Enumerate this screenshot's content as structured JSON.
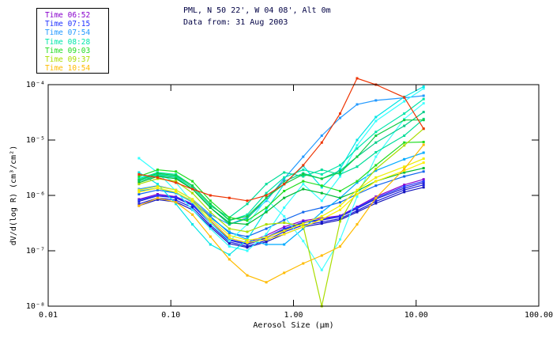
{
  "header": {
    "title": "PML, N 50 22', W 04 08', Alt 0m",
    "subtitle": "Data from: 31 Aug 2003",
    "text_color": "#000044"
  },
  "legend": {
    "entries": [
      {
        "label": "Time 06:52",
        "color": "#8800cc"
      },
      {
        "label": "Time 07:15",
        "color": "#2233ff"
      },
      {
        "label": "Time 07:54",
        "color": "#2299ff"
      },
      {
        "label": "Time 08:28",
        "color": "#00e6aa"
      },
      {
        "label": "Time 09:03",
        "color": "#22dd22"
      },
      {
        "label": "Time 09:37",
        "color": "#aadd00"
      },
      {
        "label": "Time 10:54",
        "color": "#ffbb00"
      }
    ]
  },
  "chart_data": {
    "type": "line",
    "title": "PML, N 50 22', W 04 08', Alt 0m",
    "subtitle": "Data from: 31 Aug 2003",
    "xlabel": "Aerosol Size (μm)",
    "ylabel": "dV/d(log R) (cm³/cm²)",
    "x_scale": "log",
    "y_scale": "log",
    "xlim": [
      0.01,
      100
    ],
    "ylim": [
      1e-08,
      0.0001
    ],
    "x_ticks": [
      0.01,
      0.1,
      1,
      10,
      100
    ],
    "x_tick_labels": [
      "0.01",
      "0.10",
      "1.00",
      "10.00",
      "100.00"
    ],
    "y_ticks": [
      1e-08,
      1e-07,
      1e-06,
      1e-05,
      0.0001
    ],
    "y_tick_labels": [
      "10⁻⁸",
      "10⁻⁷",
      "10⁻⁶",
      "10⁻⁵",
      "10⁻⁴"
    ],
    "grid": false,
    "legend_position": "top-left",
    "marker": "square",
    "x": [
      0.055,
      0.078,
      0.11,
      0.15,
      0.21,
      0.3,
      0.42,
      0.6,
      0.84,
      1.2,
      1.7,
      2.4,
      3.3,
      4.7,
      8.0,
      11.5
    ],
    "series": [
      {
        "label": "Time 06:52",
        "color": "#8800cc",
        "values": [
          8.5e-07,
          1.05e-06,
          9.5e-07,
          7e-07,
          3.5e-07,
          1.7e-07,
          1.4e-07,
          1.9e-07,
          2.7e-07,
          3.5e-07,
          3.9e-07,
          4.3e-07,
          6.2e-07,
          9.5e-07,
          1.55e-06,
          1.95e-06
        ]
      },
      {
        "label": "",
        "color": "#1a1add",
        "values": [
          7e-07,
          9e-07,
          8.2e-07,
          6e-07,
          2.9e-07,
          1.45e-07,
          1.2e-07,
          1.55e-07,
          2.2e-07,
          2.9e-07,
          3.3e-07,
          3.8e-07,
          5.3e-07,
          7.8e-07,
          1.25e-06,
          1.55e-06
        ]
      },
      {
        "label": "",
        "color": "#2222cc",
        "values": [
          7.8e-07,
          9.8e-07,
          9e-07,
          6.6e-07,
          3.2e-07,
          1.55e-07,
          1.3e-07,
          1.7e-07,
          2.4e-07,
          3.2e-07,
          3.6e-07,
          4.1e-07,
          5.8e-07,
          8.6e-07,
          1.35e-06,
          1.7e-06
        ]
      },
      {
        "label": "Time 07:15",
        "color": "#2233ff",
        "values": [
          8.2e-07,
          1e-06,
          9.2e-07,
          6.8e-07,
          3.3e-07,
          1.6e-07,
          1.35e-07,
          1.75e-07,
          2.5e-07,
          3.3e-07,
          3.7e-07,
          4.2e-07,
          6e-07,
          9e-07,
          1.45e-06,
          1.8e-06
        ]
      },
      {
        "label": "",
        "color": "#1515bb",
        "values": [
          6.5e-07,
          8.4e-07,
          7.6e-07,
          5.5e-07,
          2.7e-07,
          1.35e-07,
          1.15e-07,
          1.45e-07,
          2e-07,
          2.7e-07,
          3.1e-07,
          3.6e-07,
          5e-07,
          7.2e-07,
          1.15e-06,
          1.4e-06
        ]
      },
      {
        "label": "",
        "color": "#1166ee",
        "values": [
          1.05e-06,
          1.25e-06,
          1.1e-06,
          8e-07,
          4.2e-07,
          2.1e-07,
          1.8e-07,
          2.5e-07,
          3.6e-07,
          5e-07,
          6e-07,
          7.5e-07,
          1.05e-06,
          1.5e-06,
          2.2e-06,
          2.7e-06
        ]
      },
      {
        "label": "Time 07:54",
        "color": "#2299ff",
        "values": [
          1.3e-06,
          1.5e-06,
          1.25e-06,
          8.5e-07,
          4.5e-07,
          3e-07,
          4e-07,
          8e-07,
          2e-06,
          5e-06,
          1.2e-05,
          2.5e-05,
          4.4e-05,
          5.2e-05,
          5.8e-05,
          6.3e-05
        ]
      },
      {
        "label": "",
        "color": "#00aaff",
        "values": [
          1.2e-06,
          1.35e-06,
          1.1e-06,
          7.5e-07,
          4e-07,
          2.2e-07,
          1.6e-07,
          1.3e-07,
          1.3e-07,
          2.5e-07,
          5e-07,
          9e-07,
          1.7e-06,
          2.8e-06,
          4.5e-06,
          5.9e-06
        ]
      },
      {
        "label": "",
        "color": "#33ffff",
        "values": [
          4.7e-06,
          2.6e-06,
          1.2e-06,
          5.5e-07,
          2.5e-07,
          1.2e-07,
          1e-07,
          2e-07,
          6e-07,
          1.6e-06,
          8e-07,
          2.2e-06,
          8e-06,
          2.2e-05,
          5e-05,
          8.5e-05
        ]
      },
      {
        "label": "",
        "color": "#00e6e6",
        "values": [
          2.6e-06,
          1.6e-06,
          7e-07,
          3e-07,
          1.3e-07,
          8.5e-08,
          1.6e-07,
          5.5e-07,
          1.6e-06,
          3.4e-06,
          1.4e-06,
          3e-06,
          1e-05,
          2.6e-05,
          6e-05,
          9.2e-05
        ]
      },
      {
        "label": "",
        "color": "#44ffff",
        "values": [
          2.1e-06,
          2.5e-06,
          1.7e-06,
          7.5e-07,
          3.2e-07,
          1.5e-07,
          3e-07,
          8.5e-07,
          4.2e-07,
          1.5e-07,
          4.5e-08,
          1.6e-07,
          9.5e-07,
          5e-06,
          2.4e-05,
          4.6e-05
        ]
      },
      {
        "label": "Time 08:28",
        "color": "#00e6aa",
        "values": [
          2e-06,
          2.6e-06,
          2.4e-06,
          1.5e-06,
          7e-07,
          3.5e-07,
          4.5e-07,
          1.1e-06,
          2.1e-06,
          2.9e-06,
          2.4e-06,
          3.5e-06,
          7e-06,
          1.4e-05,
          3e-05,
          5.5e-05
        ]
      },
      {
        "label": "",
        "color": "#00cc88",
        "values": [
          1.8e-06,
          2.3e-06,
          2.1e-06,
          1.3e-06,
          6e-07,
          3e-07,
          3.8e-07,
          9e-07,
          1.8e-06,
          2.5e-06,
          2e-06,
          2.8e-06,
          5e-06,
          9e-06,
          1.8e-05,
          3.2e-05
        ]
      },
      {
        "label": "",
        "color": "#00dd99",
        "values": [
          1.9e-06,
          2.4e-06,
          2.2e-06,
          1.4e-06,
          6.5e-07,
          4e-07,
          7e-07,
          1.6e-06,
          2.6e-06,
          2.2e-06,
          2.9e-06,
          2.4e-06,
          3.3e-06,
          6e-06,
          1.2e-05,
          2.4e-05
        ]
      },
      {
        "label": "Time 09:03",
        "color": "#22dd22",
        "values": [
          2.2e-06,
          2.9e-06,
          2.7e-06,
          1.8e-06,
          8e-07,
          4e-07,
          3.5e-07,
          6e-07,
          1.2e-06,
          1.8e-06,
          1.5e-06,
          1.2e-06,
          1.8e-06,
          3.5e-06,
          9e-06,
          9.2e-06
        ]
      },
      {
        "label": "",
        "color": "#11cc44",
        "values": [
          1.9e-06,
          2.5e-06,
          2.3e-06,
          1.5e-06,
          7e-07,
          3.6e-07,
          4.2e-07,
          9e-07,
          1.6e-06,
          2.4e-06,
          2e-06,
          2.6e-06,
          5e-06,
          1.2e-05,
          2.3e-05,
          2.3e-05
        ]
      },
      {
        "label": "",
        "color": "#00bb33",
        "values": [
          1.7e-06,
          2.2e-06,
          2e-06,
          1.3e-06,
          6e-07,
          3.2e-07,
          3e-07,
          5e-07,
          9e-07,
          1.3e-06,
          1.1e-06,
          9e-07,
          1.2e-06,
          1.8e-06,
          2.6e-06,
          3.1e-06
        ]
      },
      {
        "label": "Time 09:37",
        "color": "#aadd00",
        "values": [
          1.6e-06,
          2e-06,
          1.8e-06,
          1.1e-06,
          5e-07,
          2.5e-07,
          2.2e-07,
          3e-07,
          3.2e-07,
          2.8e-07,
          1e-08,
          3.4e-07,
          1.2e-06,
          3e-06,
          8e-06,
          1.6e-05
        ]
      },
      {
        "label": "",
        "color": "#eeee00",
        "values": [
          1.25e-06,
          1.45e-06,
          1.25e-06,
          8.5e-07,
          3.8e-07,
          1.9e-07,
          1.55e-07,
          1.75e-07,
          2.3e-07,
          3.1e-07,
          4.2e-07,
          6.5e-07,
          1.25e-06,
          2.1e-06,
          3.3e-06,
          4.6e-06
        ]
      },
      {
        "label": "",
        "color": "#ffee00",
        "values": [
          1.15e-06,
          1.35e-06,
          1.15e-06,
          7.8e-07,
          3.4e-07,
          1.7e-07,
          1.4e-07,
          1.6e-07,
          2e-07,
          2.7e-07,
          3.7e-07,
          5.5e-07,
          1.05e-06,
          1.8e-06,
          2.8e-06,
          3.9e-06
        ]
      },
      {
        "label": "Time 10:54",
        "color": "#ffbb00",
        "values": [
          6.5e-07,
          9e-07,
          7.5e-07,
          4.5e-07,
          1.8e-07,
          7e-08,
          3.6e-08,
          2.7e-08,
          4e-08,
          5.9e-08,
          8.2e-08,
          1.2e-07,
          3e-07,
          9e-07,
          3e-06,
          8.2e-06
        ]
      },
      {
        "label": "",
        "color": "#ee3300",
        "values": [
          2.4e-06,
          2.1e-06,
          1.7e-06,
          1.3e-06,
          1e-06,
          9e-07,
          8e-07,
          1e-06,
          1.6e-06,
          3.5e-06,
          9e-06,
          3e-05,
          0.00013,
          0.0001,
          5.9e-05,
          1.6e-05
        ]
      }
    ]
  }
}
